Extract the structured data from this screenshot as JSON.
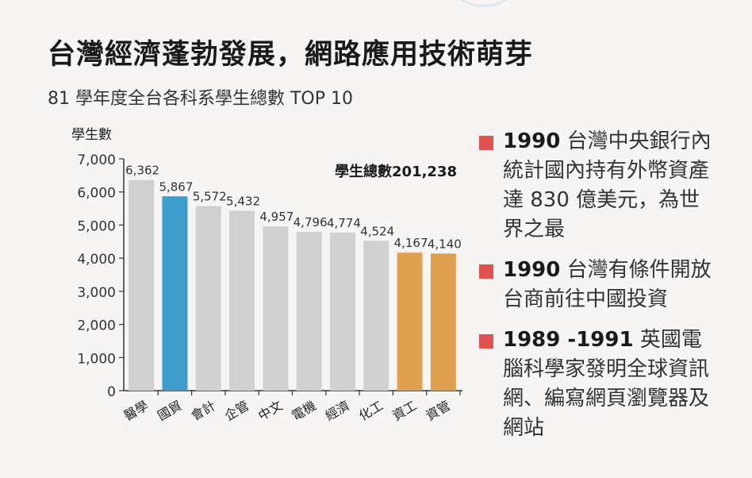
{
  "title": "台灣經濟蓬勃發展，網路應用技術萌芽",
  "subtitle": "81 學年度全台各科系學生總數 TOP 10",
  "chart_data": {
    "type": "bar",
    "ylabel": "學生數",
    "ylim": [
      0,
      7000
    ],
    "yticks": [
      "0",
      "1,000",
      "2,000",
      "3,000",
      "4,000",
      "5,000",
      "6,000",
      "7,000"
    ],
    "categories": [
      "醫學",
      "國貿",
      "會計",
      "企管",
      "中文",
      "電機",
      "經濟",
      "化工",
      "資工",
      "資管"
    ],
    "values": [
      6362,
      5867,
      5572,
      5432,
      4957,
      4796,
      4774,
      4524,
      4167,
      4140
    ],
    "value_labels": [
      "6,362",
      "5,867",
      "5,572",
      "5,432",
      "4,957",
      "4,796",
      "4,774",
      "4,524",
      "4,167",
      "4,140"
    ],
    "bar_colors": [
      "#d0d0d0",
      "#3d9ccb",
      "#d0d0d0",
      "#d0d0d0",
      "#d0d0d0",
      "#d0d0d0",
      "#d0d0d0",
      "#d0d0d0",
      "#dfa04f",
      "#dfa04f"
    ],
    "annotation": "學生總數201,238",
    "grid": false
  },
  "notes": [
    {
      "year": "1990",
      "text": " 台灣中央銀行內統計國內持有外幣資產達 830 億美元，為世界之最"
    },
    {
      "year": "1990",
      "text": " 台灣有條件開放台商前往中國投資"
    },
    {
      "year": "1989 -1991",
      "text": " 英國電腦科學家發明全球資訊網、編寫網頁瀏覽器及網站"
    }
  ],
  "colors": {
    "note_marker": "#e2524f",
    "highlight_blue": "#3d9ccb",
    "highlight_orange": "#dfa04f",
    "bar_default": "#d0d0d0"
  }
}
